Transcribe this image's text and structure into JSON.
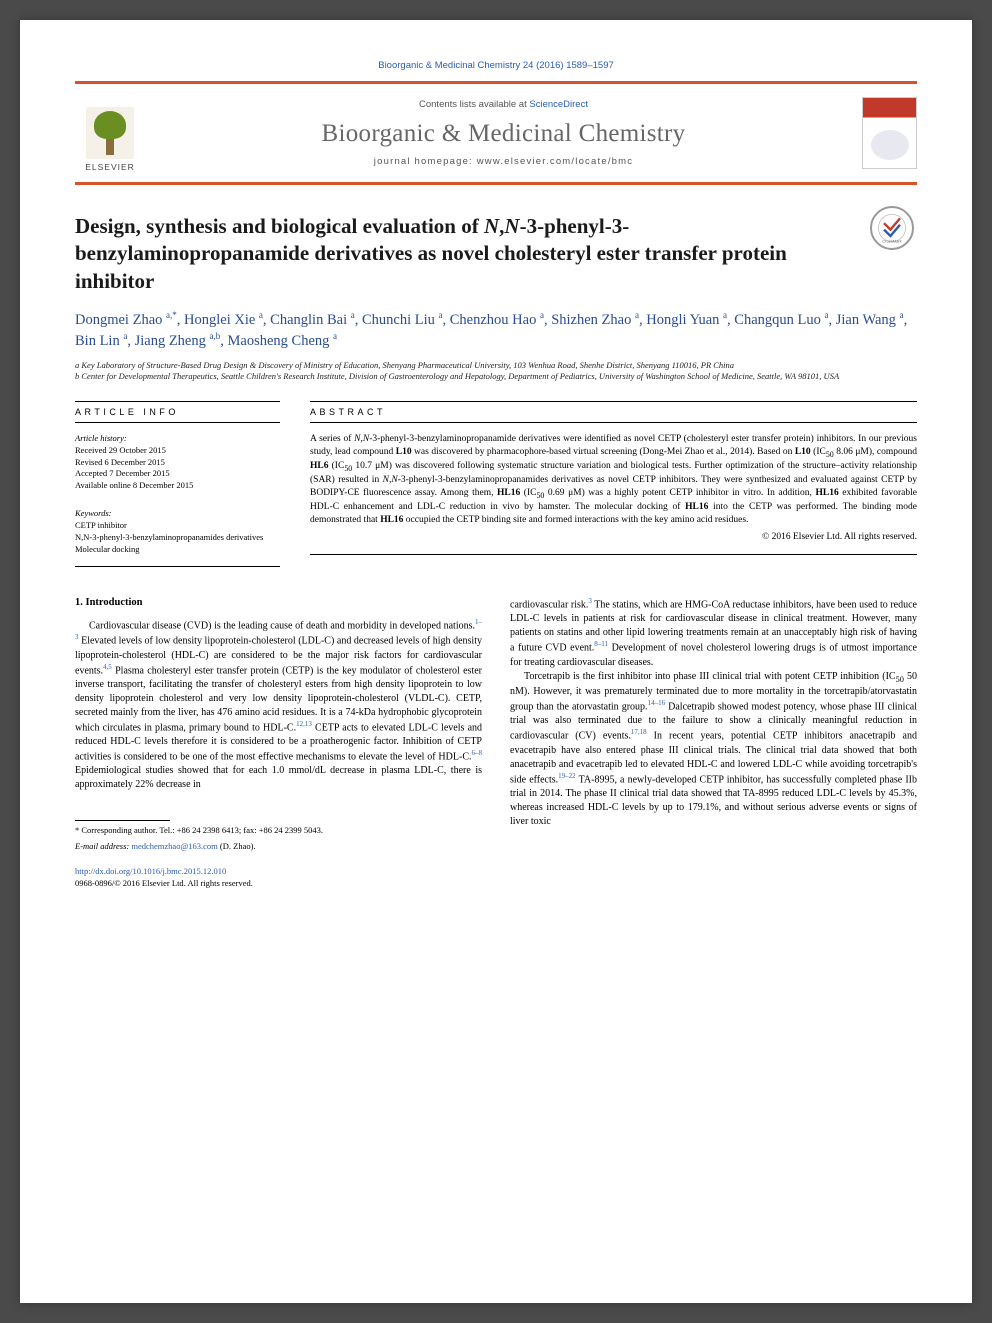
{
  "citation": "Bioorganic & Medicinal Chemistry 24 (2016) 1589–1597",
  "header": {
    "contents_prefix": "Contents lists available at ",
    "contents_link": "ScienceDirect",
    "journal": "Bioorganic & Medicinal Chemistry",
    "homepage": "journal homepage: www.elsevier.com/locate/bmc",
    "logo_text": "ELSEVIER"
  },
  "title_html": "Design, synthesis and biological evaluation of <span class=\"italic\">N</span>,<span class=\"italic\">N</span>-3-phenyl-3-benzylaminopropanamide derivatives as novel cholesteryl ester transfer protein inhibitor",
  "crossmark_label": "CrossMark",
  "authors_html": "Dongmei Zhao <sup>a,*</sup>, Honglei Xie <sup>a</sup>, Changlin Bai <sup>a</sup>, Chunchi Liu <sup>a</sup>, Chenzhou Hao <sup>a</sup>, Shizhen Zhao <sup>a</sup>, Hongli Yuan <sup>a</sup>, Changqun Luo <sup>a</sup>, Jian Wang <sup>a</sup>, Bin Lin <sup>a</sup>, Jiang Zheng <sup>a,b</sup>, Maosheng Cheng <sup>a</sup>",
  "affiliations": [
    "a Key Laboratory of Structure-Based Drug Design & Discovery of Ministry of Education, Shenyang Pharmaceutical University, 103 Wenhua Road, Shenhe District, Shenyang 110016, PR China",
    "b Center for Developmental Therapeutics, Seattle Children's Research Institute, Division of Gastroenterology and Hepatology, Department of Pediatrics, University of Washington School of Medicine, Seattle, WA 98101, USA"
  ],
  "article_info": {
    "header": "ARTICLE INFO",
    "history_label": "Article history:",
    "history": [
      "Received 29 October 2015",
      "Revised 6 December 2015",
      "Accepted 7 December 2015",
      "Available online 8 December 2015"
    ],
    "keywords_label": "Keywords:",
    "keywords": [
      "CETP inhibitor",
      "N,N-3-phenyl-3-benzylaminopropanamides derivatives",
      "Molecular docking"
    ]
  },
  "abstract": {
    "header": "ABSTRACT",
    "text_html": "A series of <i>N,N</i>-3-phenyl-3-benzylaminopropanamide derivatives were identified as novel CETP (cholesteryl ester transfer protein) inhibitors. In our previous study, lead compound <b>L10</b> was discovered by pharmacophore-based virtual screening (Dong-Mei Zhao et al., 2014). Based on <b>L10</b> (IC<sub>50</sub> 8.06 μM), compound <b>HL6</b> (IC<sub>50</sub> 10.7 μM) was discovered following systematic structure variation and biological tests. Further optimization of the structure–activity relationship (SAR) resulted in <i>N,N</i>-3-phenyl-3-benzylaminopropanamides derivatives as novel CETP inhibitors. They were synthesized and evaluated against CETP by BODIPY-CE fluorescence assay. Among them, <b>HL16</b> (IC<sub>50</sub> 0.69 μM) was a highly potent CETP inhibitor in vitro. In addition, <b>HL16</b> exhibited favorable HDL-C enhancement and LDL-C reduction in vivo by hamster. The molecular docking of <b>HL16</b> into the CETP was performed. The binding mode demonstrated that <b>HL16</b> occupied the CETP binding site and formed interactions with the key amino acid residues.",
    "copyright": "© 2016 Elsevier Ltd. All rights reserved."
  },
  "intro": {
    "heading": "1. Introduction",
    "col1_html": "<p>Cardiovascular disease (CVD) is the leading cause of death and morbidity in developed nations.<sup>1–3</sup> Elevated levels of low density lipoprotein-cholesterol (LDL-C) and decreased levels of high density lipoprotein-cholesterol (HDL-C) are considered to be the major risk factors for cardiovascular events.<sup>4,5</sup> Plasma cholesteryl ester transfer protein (CETP) is the key modulator of cholesterol ester inverse transport, facilitating the transfer of cholesteryl esters from high density lipoprotein to low density lipoprotein cholesterol and very low density lipoprotein-cholesterol (VLDL-C). CETP, secreted mainly from the liver, has 476 amino acid residues. It is a 74-kDa hydrophobic glycoprotein which circulates in plasma, primary bound to HDL-C.<sup>12,13</sup> CETP acts to elevated LDL-C levels and reduced HDL-C levels therefore it is considered to be a proatherogenic factor. Inhibition of CETP activities is considered to be one of the most effective mechanisms to elevate the level of HDL-C.<sup>6–8</sup> Epidemiological studies showed that for each 1.0 mmol/dL decrease in plasma LDL-C, there is approximately 22% decrease in</p>",
    "col2_html": "<p style=\"text-indent:0\">cardiovascular risk.<sup>3</sup> The statins, which are HMG-CoA reductase inhibitors, have been used to reduce LDL-C levels in patients at risk for cardiovascular disease in clinical treatment. However, many patients on statins and other lipid lowering treatments remain at an unacceptably high risk of having a future CVD event.<sup>8–11</sup> Development of novel cholesterol lowering drugs is of utmost importance for treating cardiovascular diseases.</p><p>Torcetrapib is the first inhibitor into phase III clinical trial with potent CETP inhibition (IC<sub>50</sub> 50 nM). However, it was prematurely terminated due to more mortality in the torcetrapib/atorvastatin group than the atorvastatin group.<sup>14–16</sup> Dalcetrapib showed modest potency, whose phase III clinical trial was also terminated due to the failure to show a clinically meaningful reduction in cardiovascular (CV) events.<sup>17,18</sup> In recent years, potential CETP inhibitors anacetrapib and evacetrapib have also entered phase III clinical trials. The clinical trial data showed that both anacetrapib and evacetrapib led to elevated HDL-C and lowered LDL-C while avoiding torcetrapib's side effects.<sup>19–22</sup> TA-8995, a newly-developed CETP inhibitor, has successfully completed phase IIb trial in 2014. The phase II clinical trial data showed that TA-8995 reduced LDL-C levels by 45.3%, whereas increased HDL-C levels by up to 179.1%, and without serious adverse events or signs of liver toxic</p>"
  },
  "footnote": {
    "corresponding": "* Corresponding author. Tel.: +86 24 2398 6413; fax: +86 24 2399 5043.",
    "email_label": "E-mail address:",
    "email": "medchemzhao@163.com",
    "email_suffix": "(D. Zhao)."
  },
  "doi": {
    "link": "http://dx.doi.org/10.1016/j.bmc.2015.12.010",
    "issn": "0968-0896/© 2016 Elsevier Ltd. All rights reserved."
  },
  "colors": {
    "accent_orange": "#d8532a",
    "link_blue": "#2a5db0",
    "author_blue": "#2a4d8f",
    "journal_grey": "#666666"
  }
}
